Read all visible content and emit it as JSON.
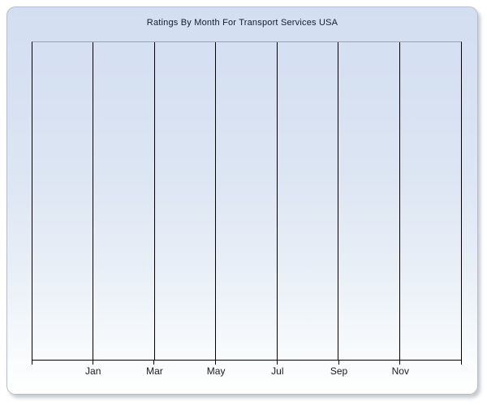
{
  "window": {
    "background_color": "#ffffff"
  },
  "panel": {
    "border_color": "#b4bdcb",
    "gradient_top_color": "#d3dff1",
    "gradient_bottom_color": "#ffffff"
  },
  "chart_data": {
    "type": "line",
    "title": "Ratings By Month For Transport Services USA",
    "title_color": "#101c30",
    "x_tick_labels": [
      "Jan",
      "Mar",
      "May",
      "Jul",
      "Sep",
      "Nov"
    ],
    "x_gridline_count": 8,
    "series": [],
    "y_axis_tick_labels": [],
    "legend": "none",
    "grid": "vertical-only",
    "gridline_color": "#000000",
    "axis_color": "#000000",
    "plot_top_border_color": "#98a3b5",
    "label_color": "#1a1a1a"
  }
}
